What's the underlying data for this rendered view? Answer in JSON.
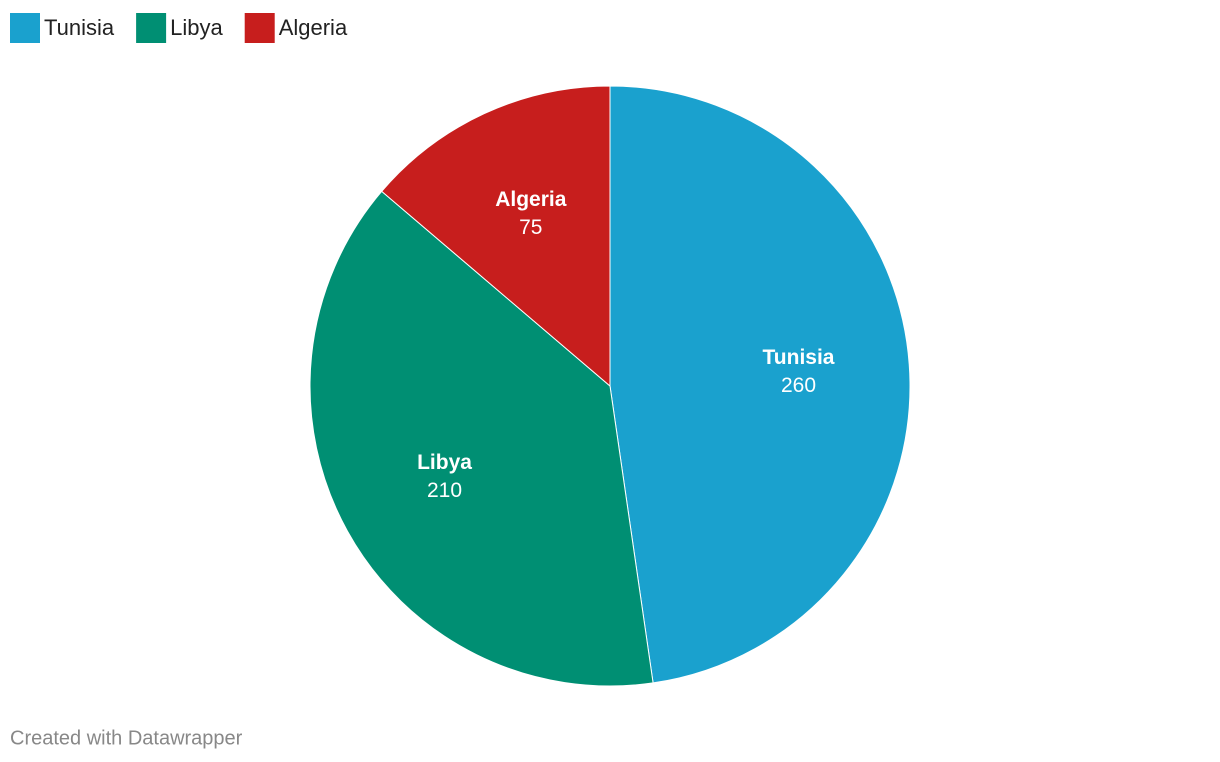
{
  "chart_data": {
    "type": "pie",
    "categories": [
      "Tunisia",
      "Libya",
      "Algeria"
    ],
    "values": [
      260,
      210,
      75
    ],
    "colors": [
      "#1aa1ce",
      "#008f73",
      "#c71e1d"
    ],
    "legend": "top-left",
    "credit": "Created with Datawrapper"
  }
}
